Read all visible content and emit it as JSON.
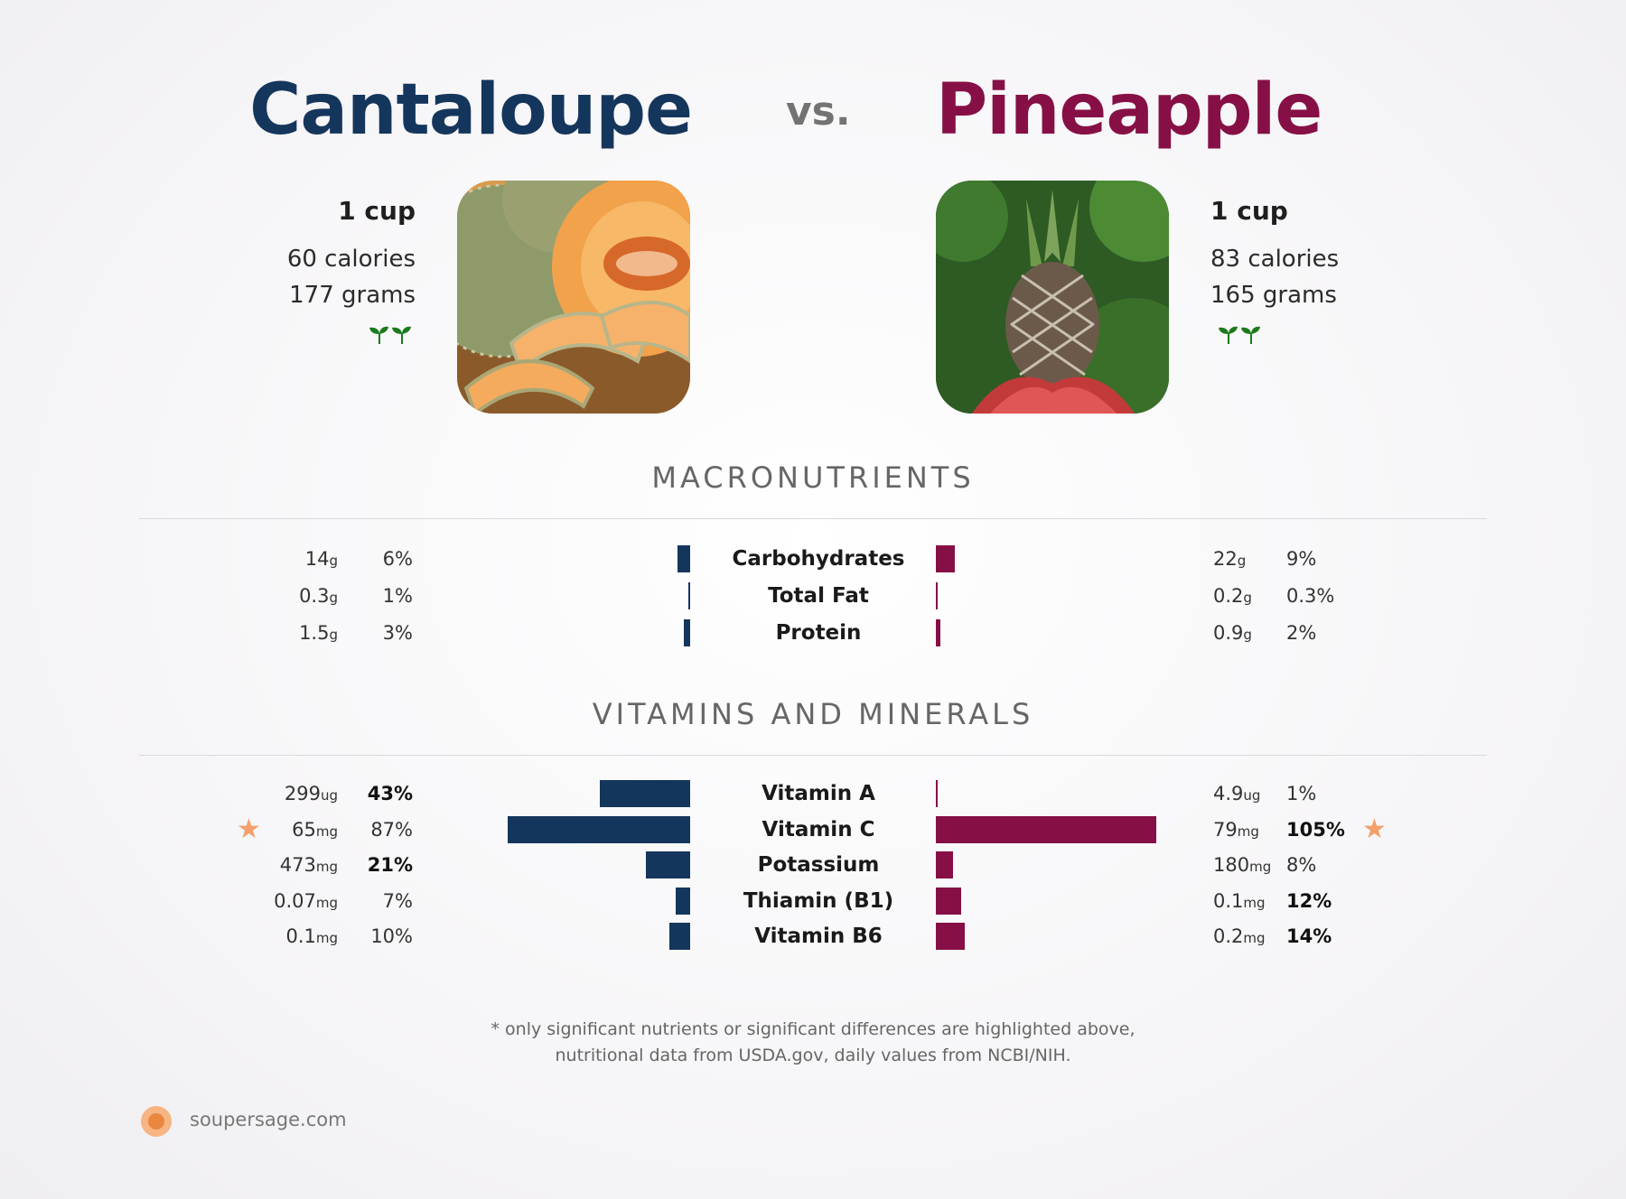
{
  "header": {
    "left_title": "Cantaloupe",
    "vs": "vs.",
    "right_title": "Pineapple"
  },
  "left_food": {
    "serving": "1 cup",
    "calories": "60 calories",
    "grams": "177 grams",
    "sprout_icon": "sprout-icon"
  },
  "right_food": {
    "serving": "1 cup",
    "calories": "83 calories",
    "grams": "165 grams",
    "sprout_icon": "sprout-icon"
  },
  "colors": {
    "left": "#15365c",
    "right": "#861046",
    "star": "#f4a06b"
  },
  "sections": {
    "macros": "MACRONUTRIENTS",
    "vitamins": "VITAMINS AND MINERALS"
  },
  "chart_data": [
    {
      "type": "bar",
      "section": "MACRONUTRIENTS",
      "categories": [
        "Carbohydrates",
        "Total Fat",
        "Protein"
      ],
      "series": [
        {
          "name": "Cantaloupe",
          "amounts": [
            [
              "14",
              "g"
            ],
            [
              "0.3",
              "g"
            ],
            [
              "1.5",
              "g"
            ]
          ],
          "values": [
            6,
            1,
            3
          ],
          "pct_labels": [
            "6%",
            "1%",
            "3%"
          ],
          "bold": [
            false,
            false,
            false
          ],
          "star": [
            false,
            false,
            false
          ]
        },
        {
          "name": "Pineapple",
          "amounts": [
            [
              "22",
              "g"
            ],
            [
              "0.2",
              "g"
            ],
            [
              "0.9",
              "g"
            ]
          ],
          "values": [
            9,
            0.3,
            2
          ],
          "pct_labels": [
            "9%",
            "0.3%",
            "2%"
          ],
          "bold": [
            false,
            false,
            false
          ],
          "star": [
            false,
            false,
            false
          ]
        }
      ]
    },
    {
      "type": "bar",
      "section": "VITAMINS AND MINERALS",
      "categories": [
        "Vitamin A",
        "Vitamin C",
        "Potassium",
        "Thiamin (B1)",
        "Vitamin B6"
      ],
      "series": [
        {
          "name": "Cantaloupe",
          "amounts": [
            [
              "299",
              "ug"
            ],
            [
              "65",
              "mg"
            ],
            [
              "473",
              "mg"
            ],
            [
              "0.07",
              "mg"
            ],
            [
              "0.1",
              "mg"
            ]
          ],
          "values": [
            43,
            87,
            21,
            7,
            10
          ],
          "pct_labels": [
            "43%",
            "87%",
            "21%",
            "7%",
            "10%"
          ],
          "bold": [
            true,
            false,
            true,
            false,
            false
          ],
          "star": [
            false,
            true,
            false,
            false,
            false
          ]
        },
        {
          "name": "Pineapple",
          "amounts": [
            [
              "4.9",
              "ug"
            ],
            [
              "79",
              "mg"
            ],
            [
              "180",
              "mg"
            ],
            [
              "0.1",
              "mg"
            ],
            [
              "0.2",
              "mg"
            ]
          ],
          "values": [
            1,
            105,
            8,
            12,
            14
          ],
          "pct_labels": [
            "1%",
            "105%",
            "8%",
            "12%",
            "14%"
          ],
          "bold": [
            false,
            true,
            false,
            true,
            true
          ],
          "star": [
            false,
            true,
            false,
            false,
            false
          ]
        }
      ]
    }
  ],
  "footer": {
    "note_line1": "* only significant nutrients or significant differences are highlighted above,",
    "note_line2": "nutritional data from USDA.gov, daily values from NCBI/NIH.",
    "brand": "soupersage.com"
  }
}
